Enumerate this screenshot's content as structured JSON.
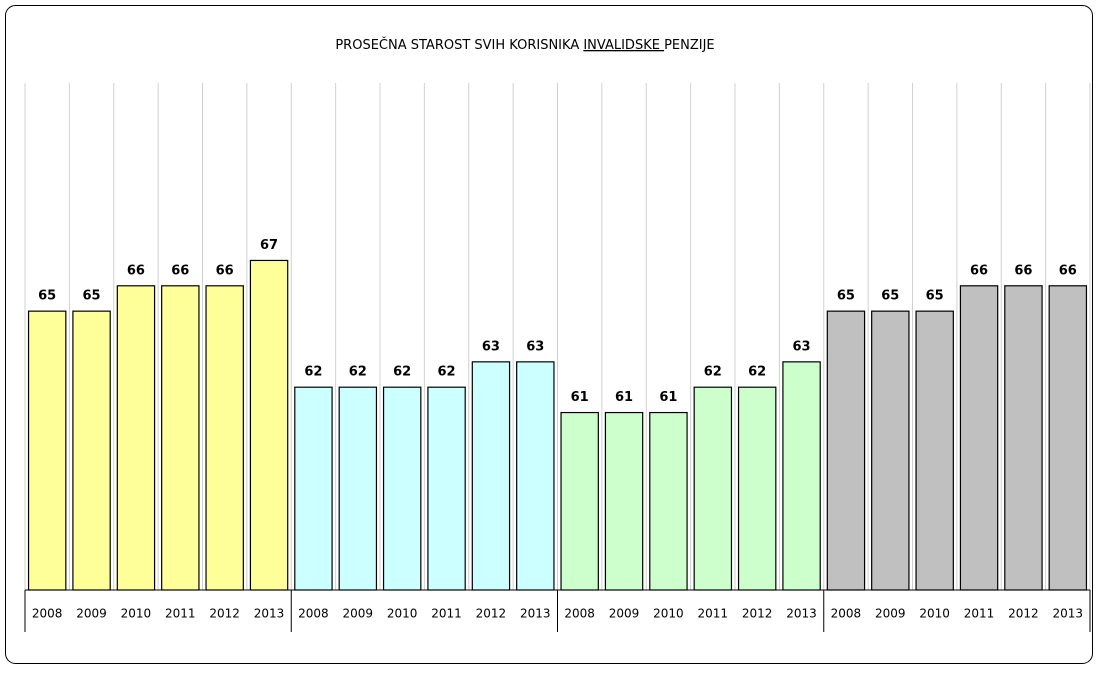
{
  "chart_data": {
    "type": "bar",
    "title_parts": [
      {
        "text": "PROSEČNA STAROST SVIH KORISNIKA ",
        "underline": false
      },
      {
        "text": "INVALIDSKE ",
        "underline": true
      },
      {
        "text": "PENZIJE",
        "underline": false
      }
    ],
    "categories": [
      "2008",
      "2009",
      "2010",
      "2011",
      "2012",
      "2013",
      "2008",
      "2009",
      "2010",
      "2011",
      "2012",
      "2013",
      "2008",
      "2009",
      "2010",
      "2011",
      "2012",
      "2013",
      "2008",
      "2009",
      "2010",
      "2011",
      "2012",
      "2013"
    ],
    "values": [
      65,
      65,
      66,
      66,
      66,
      67,
      62,
      62,
      62,
      62,
      63,
      63,
      61,
      61,
      61,
      62,
      62,
      63,
      65,
      65,
      65,
      66,
      66,
      66
    ],
    "colors": [
      "#ffff99",
      "#ffff99",
      "#ffff99",
      "#ffff99",
      "#ffff99",
      "#ffff99",
      "#ccffff",
      "#ccffff",
      "#ccffff",
      "#ccffff",
      "#ccffff",
      "#ccffff",
      "#ccffcc",
      "#ccffcc",
      "#ccffcc",
      "#ccffcc",
      "#ccffcc",
      "#ccffcc",
      "#c0c0c0",
      "#c0c0c0",
      "#c0c0c0",
      "#c0c0c0",
      "#c0c0c0",
      "#c0c0c0"
    ],
    "group_size": 6,
    "ylim": [
      54,
      74
    ]
  }
}
